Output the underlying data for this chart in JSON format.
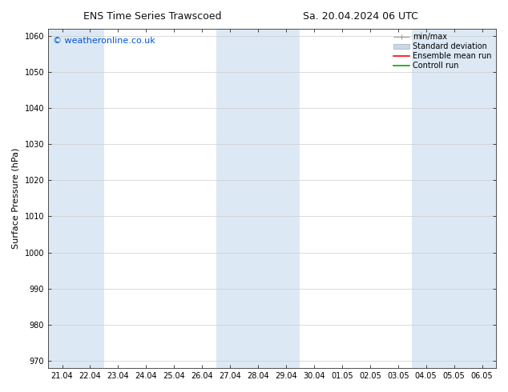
{
  "title_left": "ENS Time Series Trawscoed",
  "title_right": "Sa. 20.04.2024 06 UTC",
  "ylabel": "Surface Pressure (hPa)",
  "ylim": [
    968,
    1062
  ],
  "yticks": [
    970,
    980,
    990,
    1000,
    1010,
    1020,
    1030,
    1040,
    1050,
    1060
  ],
  "x_labels": [
    "21.04",
    "22.04",
    "23.04",
    "24.04",
    "25.04",
    "26.04",
    "27.04",
    "28.04",
    "29.04",
    "30.04",
    "01.05",
    "02.05",
    "03.05",
    "04.05",
    "05.05",
    "06.05"
  ],
  "weekend_columns": [
    0,
    1,
    6,
    7,
    8,
    13,
    14,
    15
  ],
  "shaded_color": "#dce9f5",
  "background_color": "#ffffff",
  "watermark": "© weatheronline.co.uk",
  "watermark_color": "#0055cc",
  "legend_items": [
    "min/max",
    "Standard deviation",
    "Ensemble mean run",
    "Controll run"
  ],
  "minmax_color": "#aaaaaa",
  "std_color": "#c8d8e8",
  "std_edge_color": "#aaaaaa",
  "ens_color": "#ff0000",
  "ctrl_color": "#00aa00",
  "title_fontsize": 9,
  "tick_fontsize": 7,
  "ylabel_fontsize": 8,
  "legend_fontsize": 7,
  "watermark_fontsize": 8,
  "fig_width": 6.34,
  "fig_height": 4.9,
  "dpi": 100
}
